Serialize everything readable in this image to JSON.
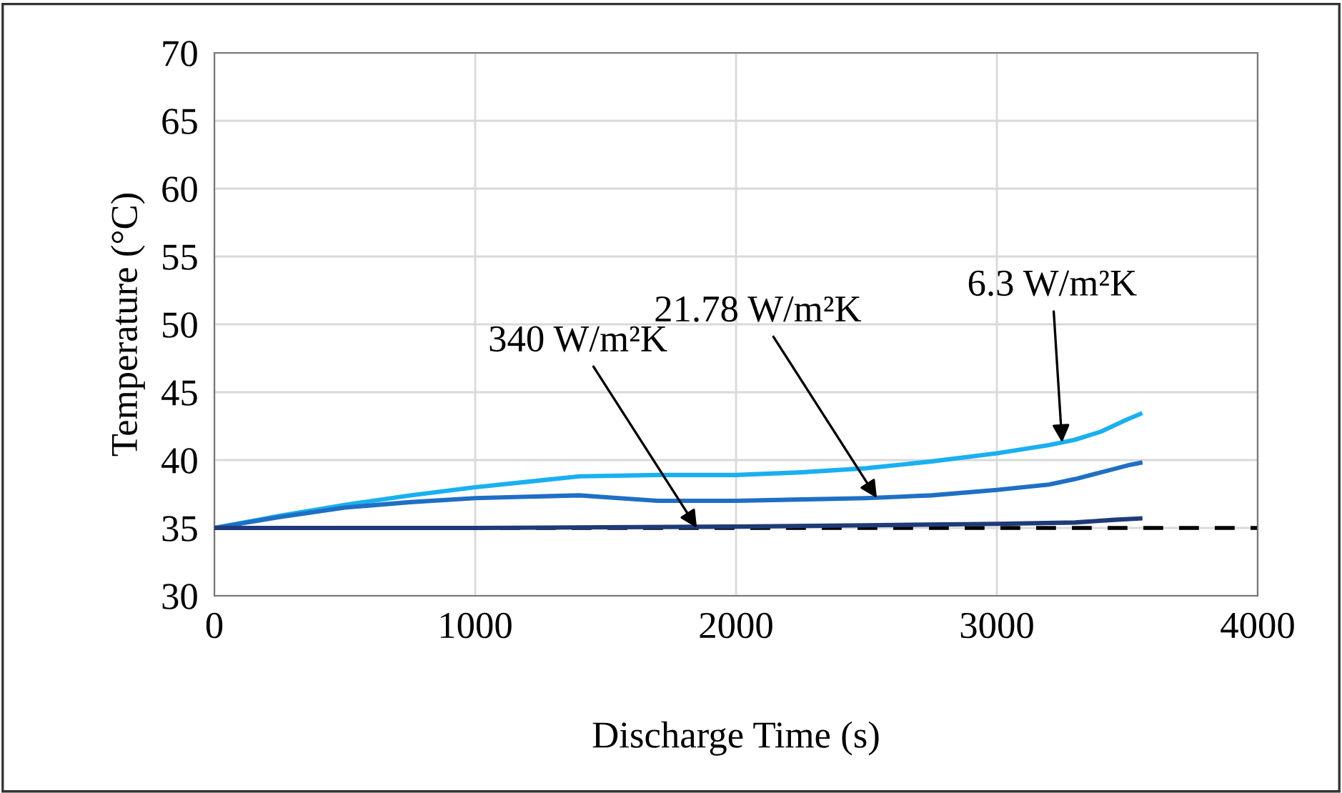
{
  "chart_data": {
    "type": "line",
    "xlabel": "Discharge Time (s)",
    "ylabel": "Temperature (°C)",
    "xlim": [
      0,
      4000
    ],
    "xticks": [
      0,
      1000,
      2000,
      3000,
      4000
    ],
    "ylim": [
      30,
      70
    ],
    "yticks": [
      30,
      35,
      40,
      45,
      50,
      55,
      60,
      65,
      70
    ],
    "grid": true,
    "marker": "none",
    "line_style": "solid",
    "series": [
      {
        "color": "#1ab0f0",
        "x": [
          0,
          250,
          500,
          750,
          1000,
          1200,
          1400,
          1700,
          2000,
          2250,
          2500,
          2750,
          3000,
          3200,
          3300,
          3400,
          3500,
          3550
        ],
        "values": [
          35,
          35.9,
          36.7,
          37.4,
          38.0,
          38.4,
          38.8,
          38.9,
          38.9,
          39.1,
          39.4,
          39.9,
          40.5,
          41.1,
          41.5,
          42.1,
          43.0,
          43.4
        ]
      },
      {
        "color": "#1f6fc4",
        "x": [
          0,
          250,
          500,
          750,
          1000,
          1200,
          1400,
          1550,
          1700,
          2000,
          2250,
          2500,
          2750,
          3000,
          3200,
          3300,
          3400,
          3500,
          3550
        ],
        "values": [
          35,
          35.8,
          36.5,
          36.9,
          37.2,
          37.3,
          37.4,
          37.2,
          37.0,
          37.0,
          37.1,
          37.2,
          37.4,
          37.8,
          38.2,
          38.6,
          39.1,
          39.6,
          39.8
        ]
      },
      {
        "color": "#1f3a78",
        "x": [
          0,
          1000,
          2000,
          2500,
          3000,
          3300,
          3450,
          3550
        ],
        "values": [
          35,
          35.0,
          35.1,
          35.2,
          35.3,
          35.4,
          35.6,
          35.7
        ]
      }
    ],
    "ref_lines": [
      {
        "axis": "y",
        "value": 35,
        "color": "#000000",
        "line_style": "dashed"
      }
    ],
    "annotations": [
      {
        "text": "340 W/m²K",
        "x": 1850,
        "y": 35
      },
      {
        "text": "21.78 W/m²K",
        "x": 2540,
        "y": 37.2
      },
      {
        "text": "6.3 W/m²K",
        "x": 3250,
        "y": 41.3
      }
    ]
  }
}
